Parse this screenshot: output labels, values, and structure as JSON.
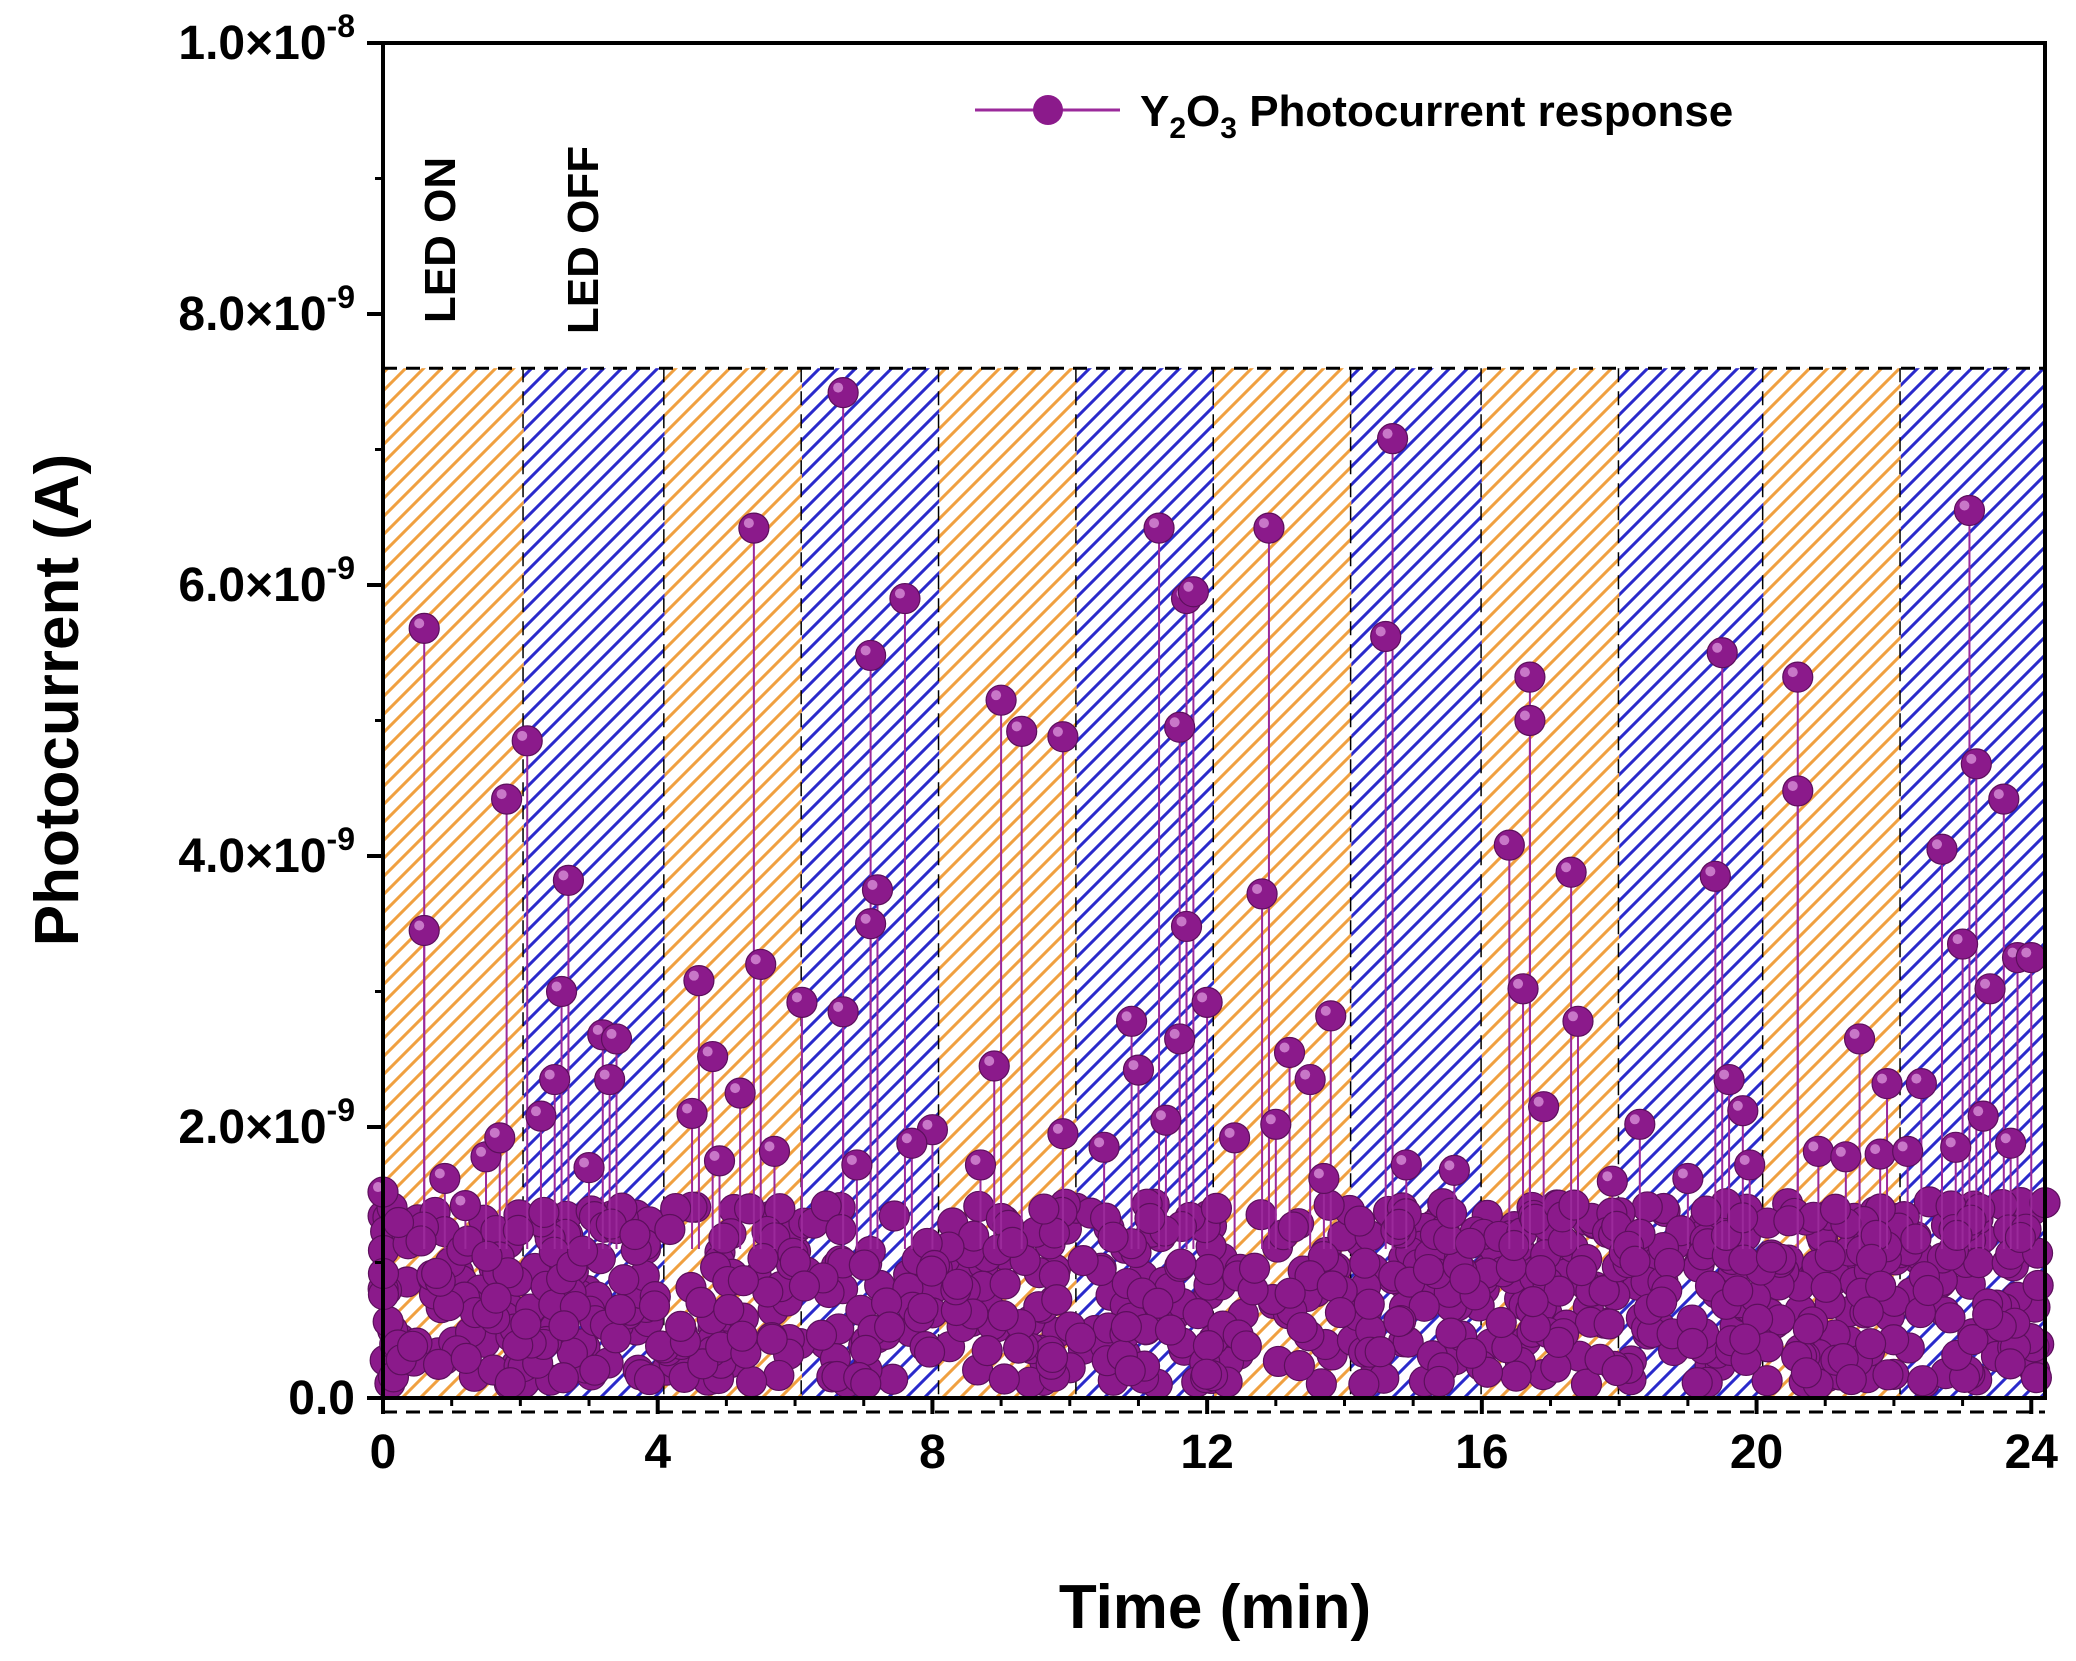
{
  "chart_data": {
    "type": "scatter",
    "title": "",
    "xlabel": "Time (min)",
    "ylabel": "Photocurrent (A)",
    "xlim": [
      0,
      24.2
    ],
    "ylim": [
      0,
      1e-08
    ],
    "xticks": [
      0,
      4,
      8,
      12,
      16,
      20,
      24
    ],
    "xtick_labels": [
      "0",
      "4",
      "8",
      "12",
      "16",
      "20",
      "24"
    ],
    "yticks": [
      0,
      2e-09,
      4e-09,
      6e-09,
      8e-09,
      1e-08
    ],
    "ytick_labels": [
      {
        "mant": "0.0",
        "exp": ""
      },
      {
        "mant": "2.0×10",
        "exp": "-9"
      },
      {
        "mant": "4.0×10",
        "exp": "-9"
      },
      {
        "mant": "6.0×10",
        "exp": "-9"
      },
      {
        "mant": "8.0×10",
        "exp": "-9"
      },
      {
        "mant": "1.0×10",
        "exp": "-8"
      }
    ],
    "legend": {
      "position": "top-right",
      "label_main": "Y",
      "label_sub1": "2",
      "label_mid": "O",
      "label_sub2": "3",
      "label_rest": " Photocurrent response"
    },
    "annotations": [
      "LED ON",
      "LED OFF"
    ],
    "regions": [
      {
        "state": "on",
        "x0": 0,
        "x1": 2.05
      },
      {
        "state": "off",
        "x0": 2.05,
        "x1": 4.1
      },
      {
        "state": "on",
        "x0": 4.1,
        "x1": 6.1
      },
      {
        "state": "off",
        "x0": 6.1,
        "x1": 8.1
      },
      {
        "state": "on",
        "x0": 8.1,
        "x1": 10.1
      },
      {
        "state": "off",
        "x0": 10.1,
        "x1": 12.1
      },
      {
        "state": "on",
        "x0": 12.1,
        "x1": 14.1
      },
      {
        "state": "off",
        "x0": 14.1,
        "x1": 16.0
      },
      {
        "state": "on",
        "x0": 16.0,
        "x1": 18.0
      },
      {
        "state": "off",
        "x0": 18.0,
        "x1": 20.1
      },
      {
        "state": "on",
        "x0": 20.1,
        "x1": 22.1
      },
      {
        "state": "off",
        "x0": 22.1,
        "x1": 24.2
      }
    ],
    "region_top": 7.6e-09,
    "colors": {
      "series": "#8B1A8B",
      "series_line": "#9b2a9b",
      "on_hatch": "#f0a040",
      "off_hatch": "#2a2acc",
      "axis": "#000000"
    },
    "series": [
      {
        "name": "Y2O3 Photocurrent response",
        "x": [
          0.6,
          0.6,
          1.8,
          2.1,
          2.6,
          2.7,
          2.5,
          3.2,
          3.4,
          3.3,
          4.6,
          4.8,
          5.4,
          5.5,
          5.2,
          6.1,
          6.7,
          6.7,
          7.1,
          7.1,
          7.2,
          7.6,
          8.0,
          9.0,
          8.9,
          9.3,
          9.9,
          9.9,
          10.9,
          11.0,
          11.3,
          11.7,
          11.8,
          11.7,
          11.6,
          11.6,
          12.0,
          12.9,
          12.8,
          13.2,
          13.5,
          13.8,
          14.6,
          14.7,
          16.4,
          16.6,
          16.7,
          16.7,
          17.3,
          17.4,
          19.4,
          19.5,
          19.6,
          19.8,
          20.6,
          20.6,
          21.5,
          21.9,
          22.4,
          22.7,
          23.1,
          23.0,
          23.2,
          23.4,
          23.6,
          23.8,
          24.0,
          0.0,
          0.9,
          1.2,
          1.5,
          1.7,
          2.3,
          3.0,
          4.5,
          4.9,
          5.7,
          6.9,
          7.7,
          8.7,
          10.5,
          11.4,
          12.4,
          13.0,
          13.7,
          14.9,
          15.6,
          16.9,
          17.9,
          18.3,
          19.0,
          19.9,
          20.9,
          21.3,
          21.8,
          22.2,
          22.9,
          23.3,
          23.7
        ]
      }
    ],
    "y": [
      5.68e-09,
      3.45e-09,
      4.42e-09,
      4.85e-09,
      3e-09,
      3.82e-09,
      2.35e-09,
      2.68e-09,
      2.65e-09,
      2.35e-09,
      3.08e-09,
      2.52e-09,
      6.42e-09,
      3.2e-09,
      2.25e-09,
      2.92e-09,
      7.42e-09,
      2.85e-09,
      5.48e-09,
      3.5e-09,
      3.75e-09,
      5.9e-09,
      1.98e-09,
      5.15e-09,
      2.45e-09,
      4.92e-09,
      4.88e-09,
      1.95e-09,
      2.78e-09,
      2.42e-09,
      6.42e-09,
      5.9e-09,
      5.95e-09,
      3.48e-09,
      4.95e-09,
      2.65e-09,
      2.92e-09,
      6.42e-09,
      3.72e-09,
      2.55e-09,
      2.35e-09,
      2.82e-09,
      5.62e-09,
      7.08e-09,
      4.08e-09,
      3.02e-09,
      5.32e-09,
      5e-09,
      3.88e-09,
      2.78e-09,
      3.85e-09,
      5.5e-09,
      2.35e-09,
      2.12e-09,
      5.32e-09,
      4.48e-09,
      2.65e-09,
      2.32e-09,
      2.32e-09,
      4.05e-09,
      6.55e-09,
      3.35e-09,
      4.68e-09,
      3.02e-09,
      4.42e-09,
      3.25e-09,
      3.25e-09,
      1.52e-09,
      1.62e-09,
      1.42e-09,
      1.78e-09,
      1.92e-09,
      2.08e-09,
      1.7e-09,
      2.1e-09,
      1.75e-09,
      1.82e-09,
      1.72e-09,
      1.88e-09,
      1.72e-09,
      1.85e-09,
      2.05e-09,
      1.92e-09,
      2.02e-09,
      1.62e-09,
      1.72e-09,
      1.68e-09,
      2.15e-09,
      1.6e-09,
      2.02e-09,
      1.62e-09,
      1.72e-09,
      1.82e-09,
      1.78e-09,
      1.8e-09,
      1.82e-09,
      1.85e-09,
      2.08e-09,
      1.88e-09
    ]
  }
}
